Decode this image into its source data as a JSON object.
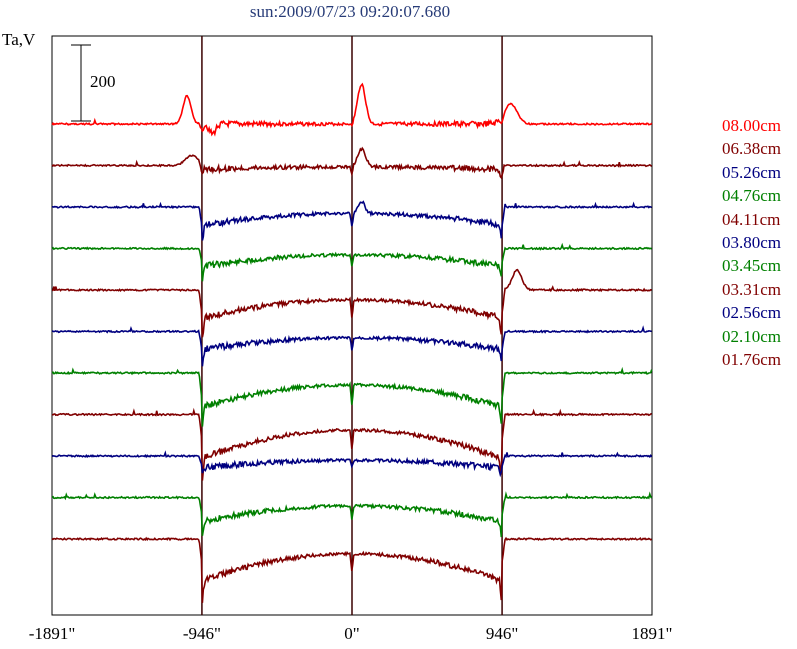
{
  "chart_data": {
    "type": "line",
    "title": "sun:2009/07/23 09:20:07.680",
    "ylabel": "Ta,V",
    "scale_bar_label": "200",
    "xlim": [
      -1891,
      1891
    ],
    "x_ticks": [
      {
        "value": -1891,
        "label": "-1891\""
      },
      {
        "value": -946,
        "label": "-946\""
      },
      {
        "value": 0,
        "label": "0\""
      },
      {
        "value": 946,
        "label": "946\""
      },
      {
        "value": 1891,
        "label": "1891\""
      }
    ],
    "vertical_lines": [
      -946,
      0,
      946
    ],
    "series": [
      {
        "name": "08.00cm",
        "color": "#ff0000",
        "baseline": 0,
        "disk_depth": 0,
        "limb_dip": 6,
        "peaks": [
          [
            -1040,
            -28,
            25
          ],
          [
            60,
            -40,
            25
          ],
          [
            1000,
            -20,
            40
          ],
          [
            -880,
            10,
            20
          ]
        ]
      },
      {
        "name": "06.38cm",
        "color": "#800000",
        "baseline": 0,
        "disk_depth": 4,
        "limb_dip": 10,
        "peaks": [
          [
            -1010,
            -10,
            40
          ],
          [
            60,
            -18,
            25
          ]
        ]
      },
      {
        "name": "05.26cm",
        "color": "#000080",
        "baseline": 0,
        "disk_depth": 18,
        "limb_dip": 18,
        "peaks": [
          [
            60,
            -12,
            20
          ]
        ]
      },
      {
        "name": "04.76cm",
        "color": "#008000",
        "baseline": 0,
        "disk_depth": 18,
        "limb_dip": 14,
        "peaks": []
      },
      {
        "name": "04.11cm",
        "color": "#800000",
        "baseline": 0,
        "disk_depth": 28,
        "limb_dip": 24,
        "peaks": [
          [
            1040,
            -20,
            30
          ]
        ]
      },
      {
        "name": "03.80cm",
        "color": "#000080",
        "baseline": 0,
        "disk_depth": 18,
        "limb_dip": 18,
        "peaks": []
      },
      {
        "name": "03.45cm",
        "color": "#008000",
        "baseline": 0,
        "disk_depth": 34,
        "limb_dip": 26,
        "peaks": []
      },
      {
        "name": "03.31cm",
        "color": "#800000",
        "baseline": 0,
        "disk_depth": 44,
        "limb_dip": 26,
        "peaks": []
      },
      {
        "name": "02.56cm",
        "color": "#000080",
        "baseline": 0,
        "disk_depth": 12,
        "limb_dip": 10,
        "peaks": []
      },
      {
        "name": "02.10cm",
        "color": "#008000",
        "baseline": 0,
        "disk_depth": 24,
        "limb_dip": 18,
        "peaks": []
      },
      {
        "name": "01.76cm",
        "color": "#800000",
        "baseline": 0,
        "disk_depth": 42,
        "limb_dip": 24,
        "peaks": []
      }
    ]
  }
}
